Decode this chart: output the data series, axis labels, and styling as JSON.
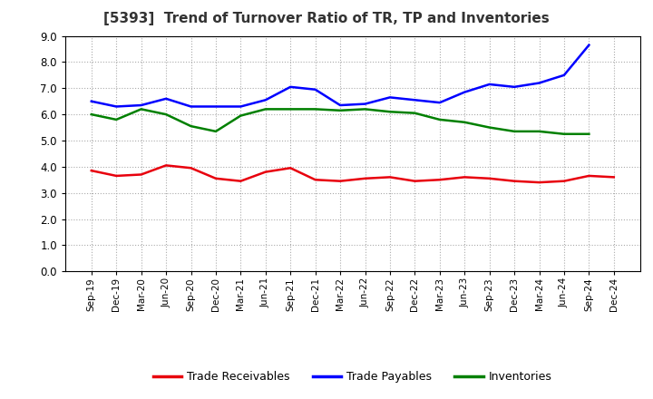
{
  "title": "[5393]  Trend of Turnover Ratio of TR, TP and Inventories",
  "x_labels": [
    "Sep-19",
    "Dec-19",
    "Mar-20",
    "Jun-20",
    "Sep-20",
    "Dec-20",
    "Mar-21",
    "Jun-21",
    "Sep-21",
    "Dec-21",
    "Mar-22",
    "Jun-22",
    "Sep-22",
    "Dec-22",
    "Mar-23",
    "Jun-23",
    "Sep-23",
    "Dec-23",
    "Mar-24",
    "Jun-24",
    "Sep-24",
    "Dec-24"
  ],
  "trade_receivables": [
    3.85,
    3.65,
    3.7,
    4.05,
    3.95,
    3.55,
    3.45,
    3.8,
    3.95,
    3.5,
    3.45,
    3.55,
    3.6,
    3.45,
    3.5,
    3.6,
    3.55,
    3.45,
    3.4,
    3.45,
    3.65,
    3.6
  ],
  "trade_payables": [
    6.5,
    6.3,
    6.35,
    6.6,
    6.3,
    6.3,
    6.3,
    6.55,
    7.05,
    6.95,
    6.35,
    6.4,
    6.65,
    6.55,
    6.45,
    6.85,
    7.15,
    7.05,
    7.2,
    7.5,
    8.65,
    null
  ],
  "inventories": [
    6.0,
    5.8,
    6.2,
    6.0,
    5.55,
    5.35,
    5.95,
    6.2,
    6.2,
    6.2,
    6.15,
    6.2,
    6.1,
    6.05,
    5.8,
    5.7,
    5.5,
    5.35,
    5.35,
    5.25,
    5.25,
    null
  ],
  "ylim": [
    0.0,
    9.0
  ],
  "yticks": [
    0.0,
    1.0,
    2.0,
    3.0,
    4.0,
    5.0,
    6.0,
    7.0,
    8.0,
    9.0
  ],
  "color_tr": "#e8000d",
  "color_tp": "#0000ff",
  "color_inv": "#008000",
  "legend_labels": [
    "Trade Receivables",
    "Trade Payables",
    "Inventories"
  ],
  "bg_color": "#ffffff",
  "plot_bg_color": "#ffffff",
  "grid_color": "#aaaaaa"
}
